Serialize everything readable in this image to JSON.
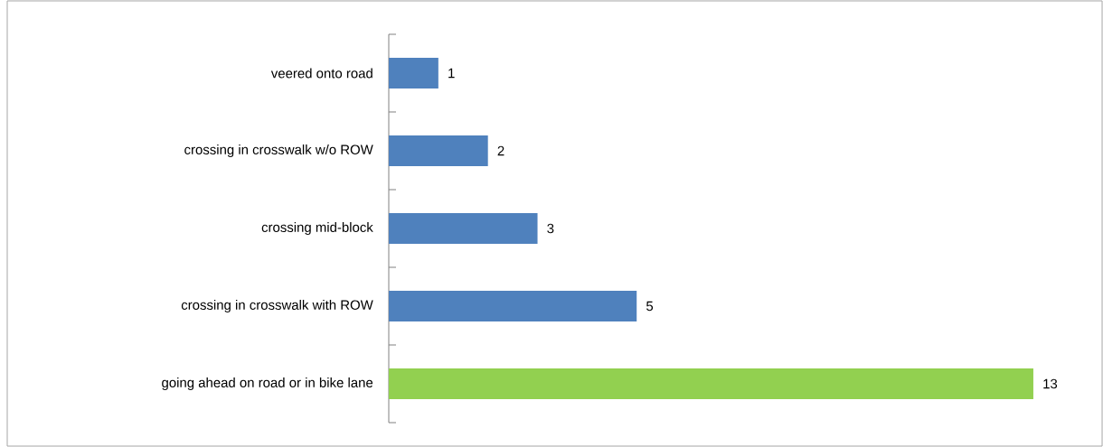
{
  "chart_data": {
    "type": "bar",
    "orientation": "horizontal",
    "categories": [
      "veered onto road",
      "crossing in crosswalk w/o ROW",
      "crossing mid-block",
      "crossing  in crosswalk with ROW",
      "going ahead on road or in bike lane"
    ],
    "values": [
      1,
      2,
      3,
      5,
      13
    ],
    "colors": [
      "#4f81bd",
      "#4f81bd",
      "#4f81bd",
      "#4f81bd",
      "#92d050"
    ],
    "data_labels": true
  }
}
